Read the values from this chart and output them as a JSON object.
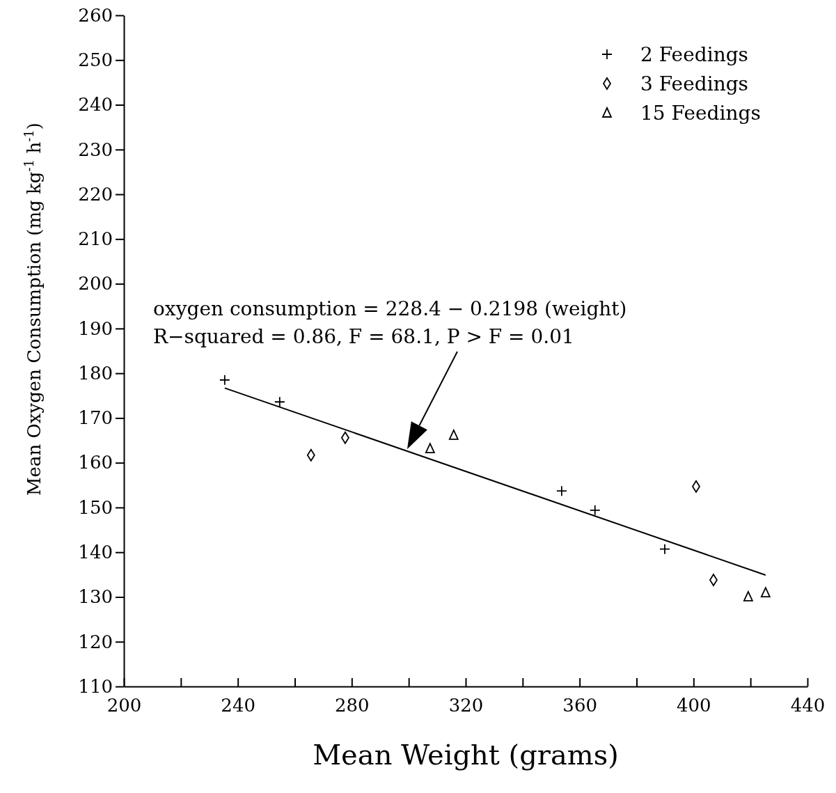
{
  "chart_data": {
    "type": "scatter",
    "xlabel": "Mean Weight (grams)",
    "ylabel": "Mean Oxygen Consumption (mg kg$^{-1}$ h$^{-1}$)",
    "xlim": [
      200,
      440
    ],
    "ylim": [
      110,
      260
    ],
    "xticks": [
      200,
      {
        "value": 220,
        "label": null
      },
      240,
      {
        "value": 260,
        "label": null
      },
      280,
      {
        "value": 300,
        "label": null
      },
      320,
      {
        "value": 340,
        "label": null
      },
      360,
      {
        "value": 380,
        "label": null
      },
      400,
      {
        "value": 420,
        "label": null
      },
      440
    ],
    "yticks": [
      110,
      120,
      130,
      140,
      150,
      160,
      170,
      180,
      190,
      200,
      210,
      220,
      230,
      240,
      250,
      260
    ],
    "grid": false,
    "legend": "top right",
    "series": [
      {
        "name": "2 Feedings",
        "color": "#000000",
        "marker": "cross",
        "x": [
          235.4,
          254.7,
          353.7,
          365.4,
          389.9
        ],
        "values": [
          178.5,
          173.6,
          153.7,
          149.4,
          140.7
        ]
      },
      {
        "name": "3 Feedings",
        "color": "#000000",
        "marker": "diamond",
        "x": [
          265.7,
          277.7,
          400.9,
          407.0
        ],
        "values": [
          161.7,
          165.6,
          154.7,
          133.8
        ]
      },
      {
        "name": "15 Feedings",
        "color": "#000000",
        "marker": "triangle",
        "x": [
          307.5,
          315.8,
          419.2,
          425.3
        ],
        "values": [
          163.2,
          166.2,
          130.1,
          131.0
        ]
      },
      {
        "type": "line",
        "color": "#000000",
        "marker": "none",
        "line_style": "solid",
        "x": [
          235.4,
          425.3
        ],
        "values": [
          176.7,
          134.9
        ]
      }
    ],
    "annotations": [
      "oxygen consumption = 228.4 − 0.2198 (weight)",
      "R−squared = 0.86, F = 68.1, P > F = 0.01"
    ]
  }
}
